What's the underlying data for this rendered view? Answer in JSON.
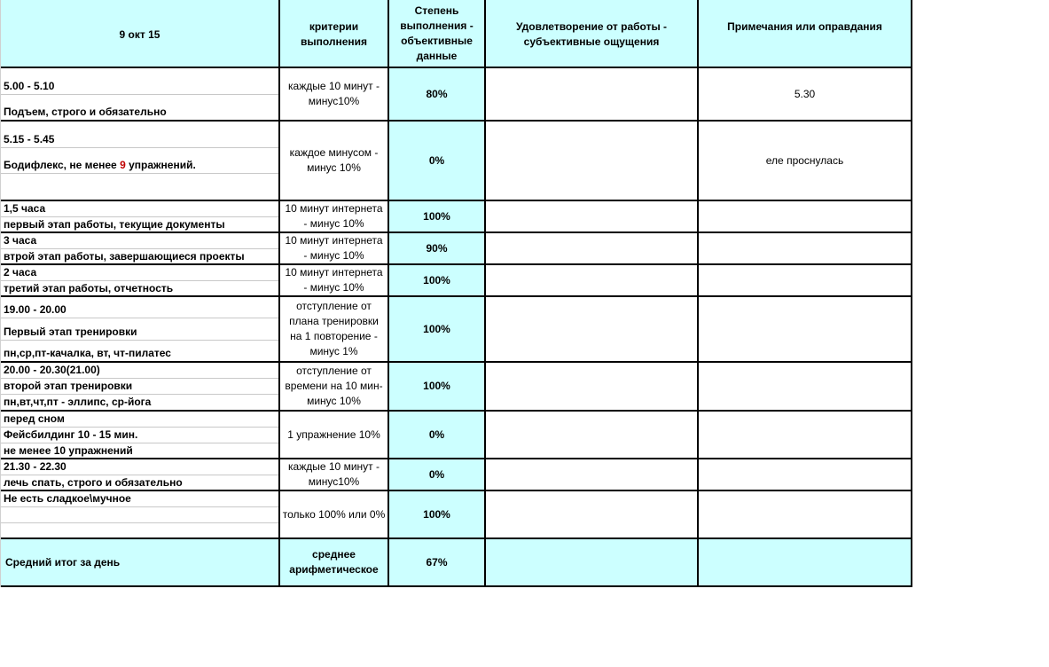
{
  "header": {
    "date": "9 окт 15",
    "criteria": "критерии выполнения",
    "degree": "Степень выполнения - объективные данные",
    "satisfaction": "Удовлетворение от работы - субъективные ощущения",
    "notes": "Примечания или оправдания"
  },
  "rows": [
    {
      "lines": [
        "5.00 - 5.10",
        "Подъем, строго и обязательно"
      ],
      "criteria": "каждые 10 минут - минус10%",
      "degree": "80%",
      "satisfaction": "",
      "notes": "5.30"
    },
    {
      "lines": [
        "5.15 - 5.45",
        "Бодифлекс, не менее |9| упражнений.",
        ""
      ],
      "criteria": "каждое минусом - минус 10%",
      "degree": "0%",
      "satisfaction": "",
      "notes": "еле проснулась"
    },
    {
      "lines": [
        "1,5 часа",
        "первый этап работы, текущие документы"
      ],
      "criteria": "10 минут интернета -  минус 10%",
      "degree": "100%",
      "satisfaction": "",
      "notes": ""
    },
    {
      "lines": [
        "3 часа",
        "втрой этап работы, завершающиеся проекты"
      ],
      "criteria": "10 минут интернета -  минус 10%",
      "degree": "90%",
      "satisfaction": "",
      "notes": ""
    },
    {
      "lines": [
        "2 часа",
        "третий этап работы, отчетность"
      ],
      "criteria": "10 минут интернета -  минус 10%",
      "degree": "100%",
      "satisfaction": "",
      "notes": ""
    },
    {
      "lines": [
        "19.00 - 20.00",
        "Первый этап тренировки",
        "пн,ср,пт-качалка, вт, чт-пилатес"
      ],
      "criteria": "отступление от плана тренировки на 1 повторение - минус 1%",
      "degree": "100%",
      "satisfaction": "",
      "notes": ""
    },
    {
      "lines": [
        "20.00 - 20.30(21.00)",
        "второй этап тренировки",
        "пн,вт,чт,пт - эллипс, ср-йога"
      ],
      "criteria": "отступление от времени на 10 мин- минус 10%",
      "degree": "100%",
      "satisfaction": "",
      "notes": ""
    },
    {
      "lines": [
        "перед сном",
        "Фейсбилдинг 10 - 15 мин.",
        "не менее 10 упражнений"
      ],
      "criteria": "1 упражнение 10%",
      "degree": "0%",
      "satisfaction": "",
      "notes": ""
    },
    {
      "lines": [
        "21.30 - 22.30",
        "лечь спать, строго и обязательно"
      ],
      "criteria": "каждые 10 минут - минус10%",
      "degree": "0%",
      "satisfaction": "",
      "notes": ""
    },
    {
      "lines": [
        "Не есть сладкое\\мучное",
        "",
        ""
      ],
      "criteria": "только 100% или 0%",
      "degree": "100%",
      "satisfaction": "",
      "notes": ""
    }
  ],
  "footer": {
    "label": "Средний итог за день",
    "criteria": "среднее арифметическое",
    "degree": "67%"
  },
  "colors": {
    "header_bg": "#ccffff",
    "highlight": "#c00000"
  }
}
